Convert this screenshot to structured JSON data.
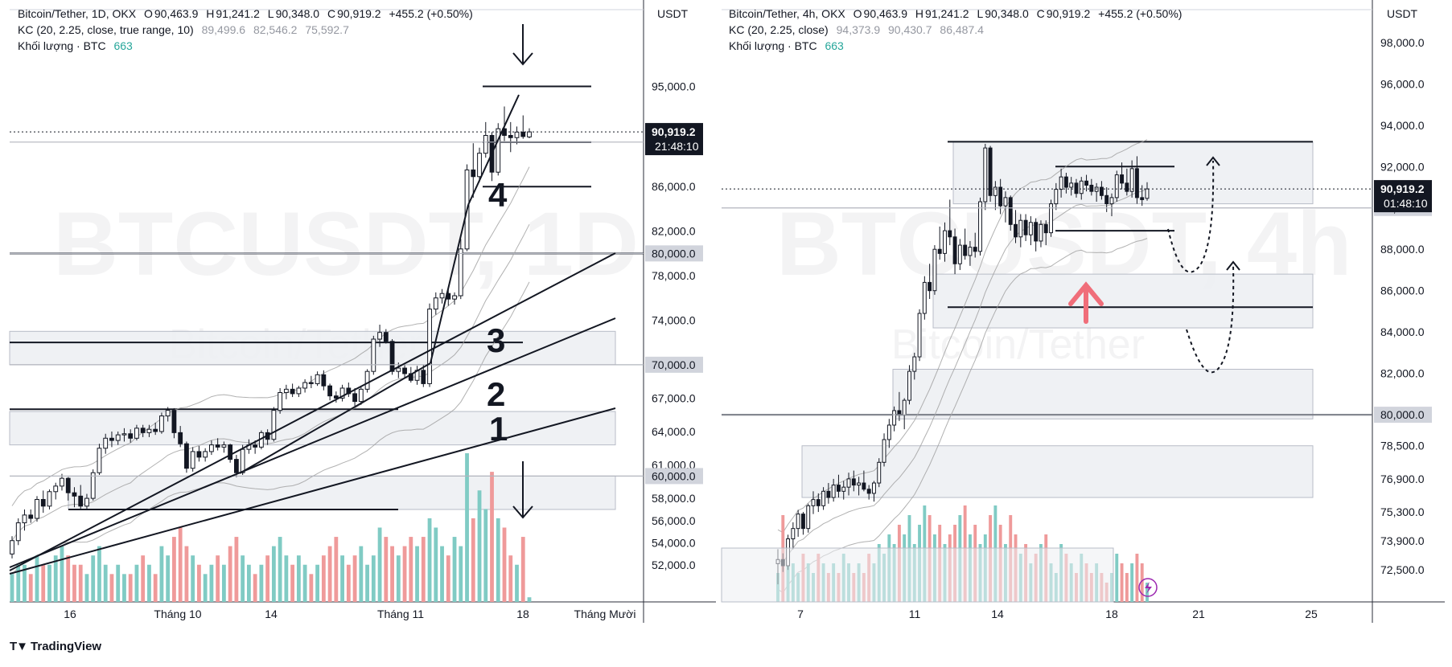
{
  "left": {
    "unit": "USDT",
    "legend": {
      "symbol": "Bitcoin/Tether, 1D, OKX",
      "o_label": "O",
      "o": "90,463.9",
      "h_label": "H",
      "h": "91,241.2",
      "l_label": "L",
      "l": "90,348.0",
      "c_label": "C",
      "c": "90,919.2",
      "change": "+455.2 (+0.50%)",
      "kc_label": "KC (20, 2.25, close, true range, 10)",
      "kc_values": [
        "89,499.6",
        "82,546.2",
        "75,592.7"
      ],
      "vol_label": "Khối lượng · BTC",
      "vol_value": "663"
    },
    "watermark": "BTCUSDT, 1D",
    "watermark_sub": "Bitcoin/Tether",
    "price_label": "90,919.2",
    "countdown": "21:48:10",
    "y_ticks": [
      "95,000.0",
      "86,000.0",
      "82,000.0",
      "78,000.0",
      "74,000.0",
      "67,000.0",
      "64,000.0",
      "61,000.0",
      "58,000.0",
      "56,000.0",
      "54,000.0",
      "52,000.0"
    ],
    "y_badges": [
      "90,000.0",
      "80,000.0",
      "70,000.0",
      "60,000.0"
    ],
    "x_ticks": [
      "16",
      "Tháng 10",
      "14",
      "Tháng 11",
      "18",
      "Tháng Mười"
    ],
    "annotations": [
      "4",
      "3",
      "2",
      "1"
    ]
  },
  "right": {
    "unit": "USDT",
    "legend": {
      "symbol": "Bitcoin/Tether, 4h, OKX",
      "o_label": "O",
      "o": "90,463.9",
      "h_label": "H",
      "h": "91,241.2",
      "l_label": "L",
      "l": "90,348.0",
      "c_label": "C",
      "c": "90,919.2",
      "change": "+455.2 (+0.50%)",
      "kc_label": "KC (20, 2.25, close)",
      "kc_values": [
        "94,373.9",
        "90,430.7",
        "86,487.4"
      ],
      "vol_label": "Khối lượng · BTC",
      "vol_value": "663"
    },
    "watermark": "BTCUSDT, 4h",
    "watermark_sub": "Bitcoin/Tether",
    "price_label": "90,919.2",
    "countdown": "01:48:10",
    "y_ticks": [
      "98,000.0",
      "96,000.0",
      "94,000.0",
      "92,000.0",
      "88,000.0",
      "86,000.0",
      "84,000.0",
      "82,000.0",
      "78,500.0",
      "76,900.0",
      "75,300.0",
      "73,900.0",
      "72,500.0"
    ],
    "y_badges": [
      "90,000.0",
      "80,000.0"
    ],
    "x_ticks": [
      "7",
      "11",
      "14",
      "18",
      "21",
      "25"
    ]
  },
  "brand": {
    "name": "TradingView"
  },
  "colors": {
    "up": "#26a69a",
    "down": "#ef5350",
    "vol_up": "#80cbc4",
    "vol_down": "#ef9a9a",
    "zone": "#eceef2",
    "arrow": "#f06e7a"
  },
  "chart_data": [
    {
      "type": "candlestick",
      "title": "Bitcoin/Tether, 1D, OKX",
      "ylabel": "USDT",
      "ylim": [
        50500,
        98000
      ],
      "candles": [
        [
          53000,
          54600,
          52600,
          54200
        ],
        [
          54200,
          56200,
          53800,
          55800
        ],
        [
          55800,
          57000,
          55100,
          56500
        ],
        [
          56500,
          57000,
          55800,
          56200
        ],
        [
          56200,
          58200,
          55900,
          57900
        ],
        [
          57900,
          58700,
          56700,
          57300
        ],
        [
          57300,
          58800,
          57000,
          58600
        ],
        [
          58600,
          59400,
          57900,
          59100
        ],
        [
          59100,
          60200,
          58700,
          59800
        ],
        [
          59800,
          59900,
          57800,
          58500
        ],
        [
          58500,
          59000,
          57200,
          58200
        ],
        [
          58200,
          59200,
          57000,
          57300
        ],
        [
          57300,
          58400,
          57000,
          58000
        ],
        [
          58000,
          60600,
          57800,
          60300
        ],
        [
          60300,
          62900,
          60100,
          62500
        ],
        [
          62500,
          63800,
          62000,
          63400
        ],
        [
          63400,
          64000,
          62600,
          63200
        ],
        [
          63200,
          64000,
          62800,
          63700
        ],
        [
          63700,
          64300,
          63100,
          63800
        ],
        [
          63800,
          64200,
          63000,
          63400
        ],
        [
          63400,
          64600,
          63200,
          64300
        ],
        [
          64300,
          64600,
          63500,
          63900
        ],
        [
          63900,
          64600,
          63500,
          64200
        ],
        [
          64200,
          64800,
          63700,
          64000
        ],
        [
          64000,
          65700,
          63800,
          65400
        ],
        [
          65400,
          66200,
          64900,
          65900
        ],
        [
          65900,
          66100,
          63400,
          63900
        ],
        [
          63900,
          64500,
          62600,
          62900
        ],
        [
          62900,
          63100,
          60300,
          60700
        ],
        [
          60700,
          62600,
          60400,
          62200
        ],
        [
          62200,
          62700,
          61300,
          61700
        ],
        [
          61700,
          62500,
          61300,
          62200
        ],
        [
          62200,
          63200,
          61900,
          62800
        ],
        [
          62800,
          63400,
          62300,
          62600
        ],
        [
          62600,
          63100,
          62100,
          62800
        ],
        [
          62800,
          62900,
          61200,
          61500
        ],
        [
          61500,
          61900,
          59900,
          60300
        ],
        [
          60300,
          62800,
          60100,
          62400
        ],
        [
          62400,
          63300,
          62000,
          62800
        ],
        [
          62800,
          63200,
          62000,
          62600
        ],
        [
          62600,
          64100,
          62400,
          63900
        ],
        [
          63900,
          64200,
          62800,
          63300
        ],
        [
          63300,
          66200,
          63100,
          65900
        ],
        [
          65900,
          67900,
          65600,
          67500
        ],
        [
          67500,
          68200,
          66900,
          67800
        ],
        [
          67800,
          68300,
          67100,
          67400
        ],
        [
          67400,
          68100,
          67100,
          67900
        ],
        [
          67900,
          68700,
          67500,
          68400
        ],
        [
          68400,
          69000,
          67900,
          68300
        ],
        [
          68300,
          69400,
          68100,
          69100
        ],
        [
          69100,
          69500,
          67700,
          68100
        ],
        [
          68100,
          68300,
          66800,
          67200
        ],
        [
          67200,
          67600,
          66600,
          67000
        ],
        [
          67000,
          68200,
          66700,
          67900
        ],
        [
          67900,
          68400,
          67100,
          67400
        ],
        [
          67400,
          67900,
          66300,
          66700
        ],
        [
          66700,
          68100,
          66400,
          67800
        ],
        [
          67800,
          69600,
          67500,
          69400
        ],
        [
          69400,
          72600,
          69100,
          72300
        ],
        [
          72300,
          73600,
          71600,
          72900
        ],
        [
          72900,
          73200,
          71900,
          72100
        ],
        [
          72100,
          72300,
          69100,
          69400
        ],
        [
          69400,
          70200,
          68800,
          69700
        ],
        [
          69700,
          70000,
          68800,
          69200
        ],
        [
          69200,
          69800,
          68400,
          68600
        ],
        [
          68600,
          69900,
          68200,
          69500
        ],
        [
          69500,
          70000,
          68000,
          68300
        ],
        [
          68300,
          75500,
          68000,
          75000
        ],
        [
          75000,
          76500,
          74500,
          76000
        ],
        [
          76000,
          76800,
          75500,
          76400
        ],
        [
          76400,
          76900,
          75300,
          75900
        ],
        [
          75900,
          76500,
          75400,
          76200
        ],
        [
          76200,
          81300,
          75900,
          80400
        ],
        [
          80400,
          88000,
          80200,
          87500
        ],
        [
          87500,
          89900,
          85000,
          86900
        ],
        [
          86900,
          89500,
          86400,
          89000
        ],
        [
          89000,
          91800,
          88600,
          90600
        ],
        [
          90600,
          90900,
          86500,
          87300
        ],
        [
          87300,
          91700,
          87000,
          91200
        ],
        [
          91200,
          93200,
          90100,
          90600
        ],
        [
          90600,
          91800,
          89100,
          90400
        ],
        [
          90400,
          91400,
          89800,
          90900
        ],
        [
          90900,
          92400,
          90300,
          90500
        ],
        [
          90463.9,
          91241.2,
          90348.0,
          90919.2
        ]
      ],
      "volume": [
        3,
        4,
        4,
        3,
        5,
        4,
        4,
        5,
        6,
        5,
        4,
        4,
        3,
        5,
        6,
        4,
        3,
        4,
        3,
        3,
        4,
        5,
        4,
        3,
        6,
        5,
        7,
        8,
        6,
        5,
        4,
        3,
        4,
        5,
        4,
        6,
        7,
        5,
        4,
        3,
        4,
        5,
        6,
        7,
        5,
        4,
        5,
        4,
        3,
        4,
        5,
        6,
        7,
        5,
        4,
        5,
        6,
        4,
        5,
        8,
        7,
        6,
        5,
        6,
        7,
        6,
        7,
        9,
        8,
        6,
        5,
        7,
        6,
        16,
        9,
        12,
        10,
        14,
        9,
        8,
        5,
        4,
        7,
        0.5
      ],
      "horizontal_levels": [
        95000,
        90000,
        86000,
        80000,
        72000,
        66000,
        57000
      ],
      "zones": [
        [
          70000,
          73000
        ],
        [
          62800,
          65800
        ],
        [
          57000,
          60000
        ]
      ],
      "annotations": [
        "4",
        "3",
        "2",
        "1"
      ]
    },
    {
      "type": "candlestick",
      "title": "Bitcoin/Tether, 4h, OKX",
      "ylabel": "USDT",
      "ylim": [
        72000,
        98500
      ],
      "candles": [
        [
          72800,
          73500,
          71800,
          73000
        ],
        [
          73000,
          73300,
          72400,
          72700
        ],
        [
          72700,
          74200,
          72500,
          74000
        ],
        [
          74000,
          74800,
          73500,
          74500
        ],
        [
          74500,
          75400,
          74100,
          75200
        ],
        [
          75200,
          75300,
          74200,
          74500
        ],
        [
          74500,
          75700,
          74300,
          75600
        ],
        [
          75600,
          76300,
          75200,
          75900
        ],
        [
          75900,
          76200,
          75300,
          75600
        ],
        [
          75600,
          76500,
          75400,
          76300
        ],
        [
          76300,
          76700,
          75700,
          76000
        ],
        [
          76000,
          76900,
          75800,
          76600
        ],
        [
          76600,
          77100,
          76000,
          76300
        ],
        [
          76300,
          76800,
          75900,
          76500
        ],
        [
          76500,
          77200,
          76100,
          76900
        ],
        [
          76900,
          77300,
          76300,
          76600
        ],
        [
          76600,
          77000,
          76100,
          76700
        ],
        [
          76700,
          77300,
          76300,
          76400
        ],
        [
          76400,
          76600,
          75900,
          76200
        ],
        [
          76200,
          76800,
          75800,
          76700
        ],
        [
          76700,
          77900,
          76500,
          77700
        ],
        [
          77700,
          79100,
          77500,
          78800
        ],
        [
          78800,
          79800,
          78400,
          79500
        ],
        [
          79500,
          80400,
          79200,
          80200
        ],
        [
          80200,
          81100,
          79700,
          80000
        ],
        [
          80000,
          80800,
          79300,
          80700
        ],
        [
          80700,
          82400,
          80500,
          82100
        ],
        [
          82100,
          83000,
          81700,
          82800
        ],
        [
          82800,
          85100,
          82600,
          84900
        ],
        [
          84900,
          86700,
          84600,
          86400
        ],
        [
          86400,
          87300,
          85600,
          86000
        ],
        [
          86000,
          88200,
          85800,
          88000
        ],
        [
          88000,
          89100,
          87500,
          87800
        ],
        [
          87800,
          89300,
          87400,
          88900
        ],
        [
          88900,
          90400,
          88200,
          88600
        ],
        [
          88600,
          89000,
          86800,
          87300
        ],
        [
          87300,
          88500,
          87000,
          88200
        ],
        [
          88200,
          89000,
          87500,
          87700
        ],
        [
          87700,
          88400,
          87200,
          88100
        ],
        [
          88100,
          88800,
          87600,
          87900
        ],
        [
          87900,
          90500,
          87700,
          90300
        ],
        [
          90300,
          93100,
          89900,
          92900
        ],
        [
          92900,
          93000,
          90300,
          90600
        ],
        [
          90600,
          91300,
          89900,
          91000
        ],
        [
          91000,
          91400,
          89700,
          90100
        ],
        [
          90100,
          90800,
          89300,
          90500
        ],
        [
          90500,
          90600,
          88900,
          89200
        ],
        [
          89200,
          89900,
          88300,
          88600
        ],
        [
          88600,
          89700,
          88100,
          89400
        ],
        [
          89400,
          89700,
          88400,
          88700
        ],
        [
          88700,
          89600,
          88200,
          89300
        ],
        [
          89300,
          89500,
          87900,
          88400
        ],
        [
          88400,
          89400,
          88100,
          89200
        ],
        [
          89200,
          89400,
          88200,
          88800
        ],
        [
          88800,
          90400,
          88600,
          90200
        ],
        [
          90200,
          91200,
          89900,
          90900
        ],
        [
          90900,
          91900,
          90500,
          91500
        ],
        [
          91500,
          91700,
          90700,
          91000
        ],
        [
          91000,
          91500,
          90600,
          91200
        ],
        [
          91200,
          91400,
          90500,
          90700
        ],
        [
          90700,
          91500,
          90400,
          91300
        ],
        [
          91300,
          91600,
          90800,
          91100
        ],
        [
          91100,
          91400,
          90600,
          90800
        ],
        [
          90800,
          91200,
          90300,
          91000
        ],
        [
          91000,
          91300,
          90400,
          90600
        ],
        [
          90600,
          91000,
          89800,
          90200
        ],
        [
          90200,
          90700,
          89600,
          90500
        ],
        [
          90500,
          91800,
          90300,
          91600
        ],
        [
          91600,
          92200,
          90900,
          91200
        ],
        [
          91200,
          91900,
          90600,
          90800
        ],
        [
          90800,
          92300,
          90500,
          91900
        ],
        [
          91900,
          92500,
          90200,
          90500
        ],
        [
          90500,
          91100,
          90100,
          90400
        ],
        [
          90463.9,
          91241.2,
          90348.0,
          90919.2
        ]
      ],
      "volume": [
        3,
        9,
        6,
        4,
        3,
        5,
        4,
        3,
        5,
        4,
        3,
        4,
        3,
        5,
        4,
        3,
        4,
        3,
        5,
        4,
        6,
        5,
        7,
        6,
        8,
        7,
        9,
        6,
        8,
        10,
        9,
        7,
        8,
        6,
        7,
        8,
        9,
        10,
        7,
        8,
        6,
        7,
        9,
        10,
        8,
        6,
        9,
        7,
        5,
        6,
        4,
        5,
        6,
        7,
        4,
        3,
        6,
        5,
        4,
        3,
        5,
        4,
        3,
        4,
        3,
        2,
        3,
        5,
        4,
        3,
        4,
        5,
        4,
        2
      ],
      "horizontal_levels": [
        93200,
        92000,
        88900,
        85200,
        80000
      ],
      "zones": [
        [
          90200,
          93200
        ],
        [
          84200,
          86800
        ],
        [
          79800,
          82200
        ],
        [
          76000,
          78500
        ]
      ]
    }
  ]
}
